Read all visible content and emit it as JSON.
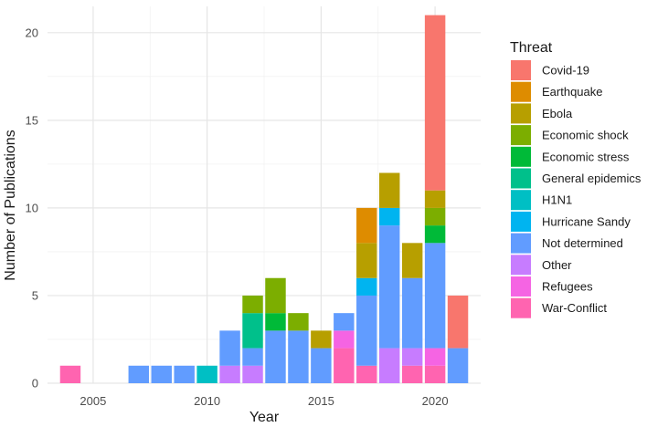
{
  "chart_data": {
    "type": "bar",
    "stacked": true,
    "title": "",
    "xlabel": "Year",
    "ylabel": "Number of Publications",
    "xlim": [
      2003,
      2022
    ],
    "ylim": [
      0,
      21.5
    ],
    "x_ticks": [
      2005,
      2010,
      2015,
      2020
    ],
    "y_ticks": [
      0,
      5,
      10,
      15,
      20
    ],
    "grid": true,
    "legend": {
      "title": "Threat",
      "position": "right"
    },
    "x": [
      2004,
      2007,
      2008,
      2009,
      2010,
      2011,
      2012,
      2013,
      2014,
      2015,
      2016,
      2017,
      2018,
      2019,
      2020,
      2021
    ],
    "series": [
      {
        "name": "Covid-19",
        "color": "#F8766D",
        "values": [
          0,
          0,
          0,
          0,
          0,
          0,
          0,
          0,
          0,
          0,
          0,
          0,
          0,
          0,
          10,
          3
        ]
      },
      {
        "name": "Earthquake",
        "color": "#DE8C00",
        "values": [
          0,
          0,
          0,
          0,
          0,
          0,
          0,
          0,
          0,
          0,
          0,
          2,
          0,
          0,
          0,
          0
        ]
      },
      {
        "name": "Ebola",
        "color": "#B79F00",
        "values": [
          0,
          0,
          0,
          0,
          0,
          0,
          0,
          0,
          0,
          1,
          0,
          2,
          2,
          2,
          1,
          0
        ]
      },
      {
        "name": "Economic shock",
        "color": "#7CAE00",
        "values": [
          0,
          0,
          0,
          0,
          0,
          0,
          1,
          2,
          1,
          0,
          0,
          0,
          0,
          0,
          1,
          0
        ]
      },
      {
        "name": "Economic stress",
        "color": "#00BA38",
        "values": [
          0,
          0,
          0,
          0,
          0,
          0,
          0,
          1,
          0,
          0,
          0,
          0,
          0,
          0,
          1,
          0
        ]
      },
      {
        "name": "General epidemics",
        "color": "#00C08B",
        "values": [
          0,
          0,
          0,
          0,
          0,
          0,
          2,
          0,
          0,
          0,
          0,
          0,
          0,
          0,
          0,
          0
        ]
      },
      {
        "name": "H1N1",
        "color": "#00BFC4",
        "values": [
          0,
          0,
          0,
          0,
          1,
          0,
          0,
          0,
          0,
          0,
          0,
          0,
          0,
          0,
          0,
          0
        ]
      },
      {
        "name": "Hurricane Sandy",
        "color": "#00B4F0",
        "values": [
          0,
          0,
          0,
          0,
          0,
          0,
          0,
          0,
          0,
          0,
          0,
          1,
          1,
          0,
          0,
          0
        ]
      },
      {
        "name": "Not determined",
        "color": "#619CFF",
        "values": [
          0,
          1,
          1,
          1,
          0,
          2,
          1,
          3,
          3,
          2,
          1,
          4,
          7,
          4,
          6,
          2
        ]
      },
      {
        "name": "Other",
        "color": "#C77CFF",
        "values": [
          0,
          0,
          0,
          0,
          0,
          1,
          1,
          0,
          0,
          0,
          0,
          0,
          2,
          1,
          0,
          0
        ]
      },
      {
        "name": "Refugees",
        "color": "#F564E3",
        "values": [
          0,
          0,
          0,
          0,
          0,
          0,
          0,
          0,
          0,
          0,
          1,
          0,
          0,
          0,
          1,
          0
        ]
      },
      {
        "name": "War-Conflict",
        "color": "#FF64B0",
        "values": [
          1,
          0,
          0,
          0,
          0,
          0,
          0,
          0,
          0,
          0,
          2,
          1,
          0,
          1,
          1,
          0
        ]
      }
    ]
  }
}
